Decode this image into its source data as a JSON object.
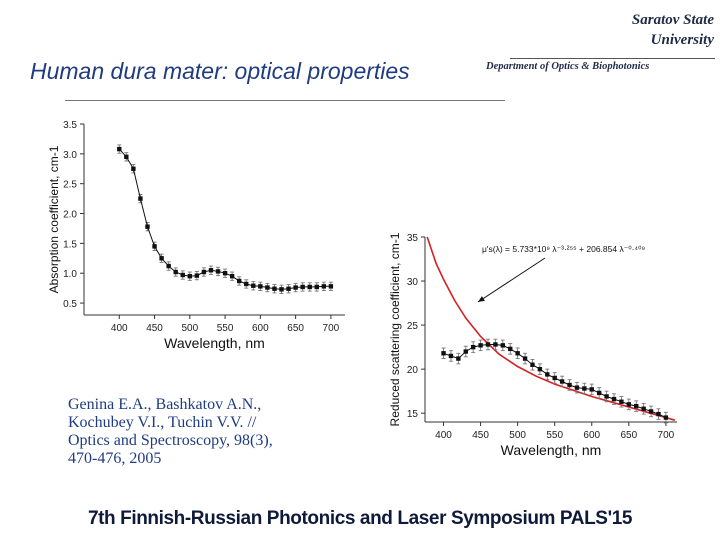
{
  "header": {
    "university_line1": "Saratov State",
    "university_line2": "University",
    "department": "Department of Optics & Biophotonics",
    "title": "Human dura mater: optical properties"
  },
  "citation": {
    "line1": "Genina E.A., Bashkatov A.N.,",
    "line2": "Kochubey V.I., Tuchin V.V. //",
    "line3": "Optics and Spectroscopy, 98(3),",
    "line4": "470-476, 2005"
  },
  "footer": "7th Finnish-Russian Photonics and Laser Symposium PALS'15",
  "chart_data": [
    {
      "type": "scatter",
      "title": "",
      "xlabel": "Wavelength, nm",
      "ylabel": "Absorption coefficient, cm-1",
      "xlim": [
        350,
        720
      ],
      "ylim": [
        0.3,
        3.5
      ],
      "x_ticks": [
        400,
        450,
        500,
        550,
        600,
        650,
        700
      ],
      "y_ticks": [
        0.5,
        1.0,
        1.5,
        2.0,
        2.5,
        3.0,
        3.5
      ],
      "y_tick_labels": [
        "0.5",
        "1.0",
        "1.5",
        "2.0",
        "2.5",
        "3.0",
        "3.5"
      ],
      "grid": false,
      "marker_color": "#000000",
      "series": [
        {
          "x": [
            400,
            410,
            420,
            430,
            440,
            450,
            460,
            470,
            480,
            490,
            500,
            510,
            520,
            530,
            540,
            550,
            560,
            570,
            580,
            590,
            600,
            610,
            620,
            630,
            640,
            650,
            660,
            670,
            680,
            690,
            700
          ],
          "values": [
            3.08,
            2.95,
            2.75,
            2.25,
            1.78,
            1.45,
            1.25,
            1.12,
            1.02,
            0.97,
            0.95,
            0.96,
            1.02,
            1.05,
            1.03,
            1.0,
            0.95,
            0.87,
            0.82,
            0.79,
            0.78,
            0.76,
            0.74,
            0.73,
            0.74,
            0.76,
            0.77,
            0.77,
            0.77,
            0.78,
            0.78
          ],
          "error": 0.07
        }
      ]
    },
    {
      "type": "scatter",
      "title": "",
      "xlabel": "Wavelength, nm",
      "ylabel": "Reduced scattering coefficient, cm-1",
      "xlim": [
        375,
        715
      ],
      "ylim": [
        14,
        35
      ],
      "x_ticks": [
        400,
        450,
        500,
        550,
        600,
        650,
        700
      ],
      "y_ticks": [
        15,
        20,
        25,
        30,
        35
      ],
      "grid": false,
      "annotation": "μ's(λ) = 5.733*10⁹ λ⁻³·²⁵⁵ + 206.854 λ⁻⁰·⁴⁰⁹",
      "fit_color": "#d62020",
      "series": [
        {
          "x": [
            400,
            410,
            420,
            430,
            440,
            450,
            460,
            470,
            480,
            490,
            500,
            510,
            520,
            530,
            540,
            550,
            560,
            570,
            580,
            590,
            600,
            610,
            620,
            630,
            640,
            650,
            660,
            670,
            680,
            690,
            700
          ],
          "values": [
            21.8,
            21.5,
            21.2,
            22.0,
            22.5,
            22.7,
            22.8,
            22.8,
            22.7,
            22.3,
            21.8,
            21.2,
            20.5,
            20.0,
            19.4,
            19.0,
            18.6,
            18.2,
            17.9,
            17.8,
            17.7,
            17.3,
            16.9,
            16.6,
            16.3,
            16.0,
            15.8,
            15.5,
            15.2,
            14.9,
            14.5
          ],
          "error": 0.6
        }
      ],
      "fit": {
        "x": [
          378,
          390,
          400,
          415,
          430,
          450,
          475,
          500,
          525,
          550,
          575,
          600,
          625,
          650,
          675,
          700,
          712
        ],
        "values": [
          35.0,
          32.0,
          30.2,
          27.8,
          25.8,
          23.7,
          21.7,
          20.3,
          19.2,
          18.3,
          17.6,
          16.9,
          16.3,
          15.7,
          15.1,
          14.5,
          14.2
        ]
      }
    }
  ]
}
